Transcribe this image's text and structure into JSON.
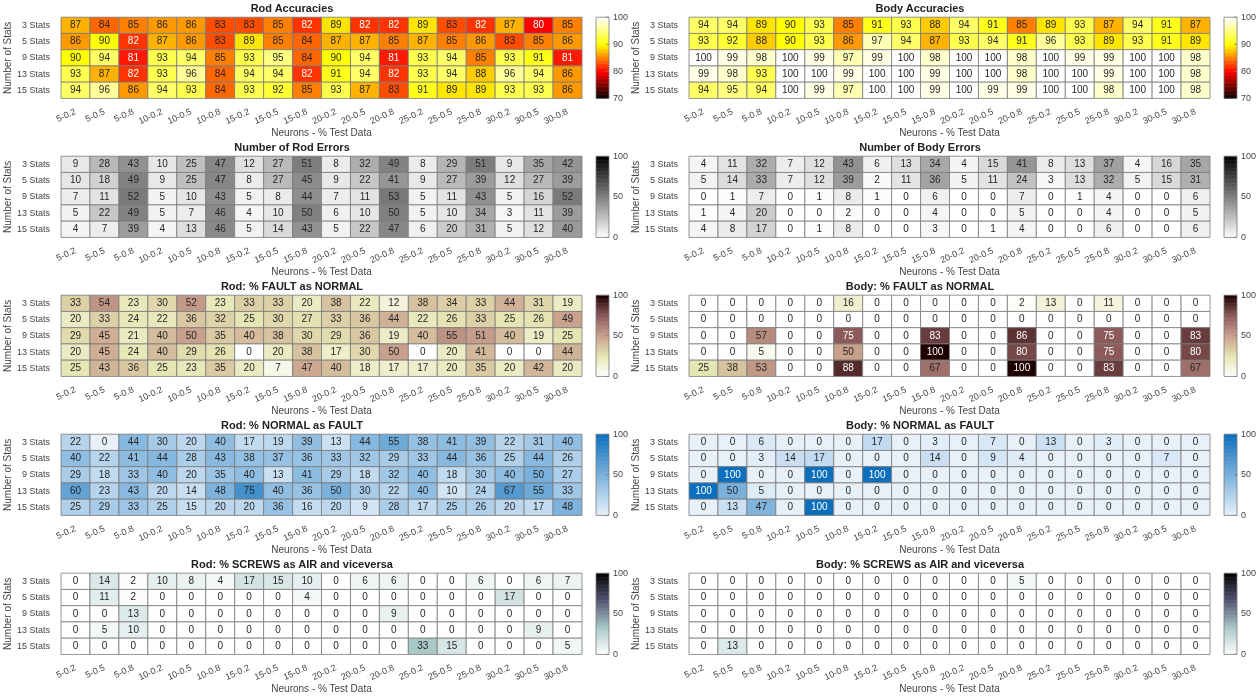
{
  "chart_data": [
    {
      "type": "heatmap",
      "title": "Rod Accuracies",
      "xlabel": "Neurons - % Test Data",
      "ylabel": "Number of Stats",
      "categories": [
        "5-0.2",
        "5-0.5",
        "5-0.8",
        "10-0.2",
        "10-0.5",
        "10-0.8",
        "15-0.2",
        "15-0.5",
        "15-0.8",
        "20-0.2",
        "20-0.5",
        "20-0.8",
        "25-0.2",
        "25-0.5",
        "25-0.8",
        "30-0.2",
        "30-0.5",
        "30-0.8"
      ],
      "y_categories": [
        "3 Stats",
        "5 Stats",
        "9 Stats",
        "13 Stats",
        "15 Stats"
      ],
      "data_labels": true,
      "clim": [
        70,
        100
      ],
      "cticks": [
        70,
        80,
        90,
        100
      ],
      "colors": [
        "#000000",
        "#ff0000",
        "#ffff00",
        "#ffffff"
      ],
      "cells": [
        [
          87,
          84,
          85,
          86,
          86,
          83,
          83,
          85,
          82,
          89,
          82,
          82,
          89,
          83,
          82,
          87,
          80,
          85
        ],
        [
          86,
          90,
          82,
          87,
          86,
          83,
          89,
          85,
          84,
          87,
          87,
          85,
          87,
          85,
          86,
          83,
          85,
          86
        ],
        [
          90,
          94,
          81,
          93,
          94,
          85,
          93,
          95,
          84,
          90,
          94,
          81,
          93,
          94,
          85,
          93,
          91,
          81
        ],
        [
          93,
          87,
          82,
          93,
          96,
          84,
          94,
          94,
          82,
          91,
          94,
          82,
          93,
          94,
          88,
          96,
          94,
          86
        ],
        [
          94,
          96,
          86,
          94,
          93,
          84,
          93,
          92,
          85,
          93,
          87,
          83,
          91,
          89,
          89,
          93,
          93,
          86
        ]
      ]
    },
    {
      "type": "heatmap",
      "title": "Body Accuracies",
      "xlabel": "Neurons - % Test Data",
      "ylabel": "Number of Stats",
      "categories": [
        "5-0.2",
        "5-0.5",
        "5-0.8",
        "10-0.2",
        "10-0.5",
        "10-0.8",
        "15-0.2",
        "15-0.5",
        "15-0.8",
        "20-0.2",
        "20-0.5",
        "20-0.8",
        "25-0.2",
        "25-0.5",
        "25-0.8",
        "30-0.2",
        "30-0.5",
        "30-0.8"
      ],
      "y_categories": [
        "3 Stats",
        "5 Stats",
        "9 Stats",
        "13 Stats",
        "15 Stats"
      ],
      "data_labels": true,
      "clim": [
        70,
        100
      ],
      "cticks": [
        70,
        80,
        90,
        100
      ],
      "colors": [
        "#000000",
        "#ff0000",
        "#ffff00",
        "#ffffff"
      ],
      "cells": [
        [
          94,
          94,
          89,
          90,
          93,
          85,
          91,
          93,
          88,
          94,
          91,
          85,
          89,
          93,
          87,
          94,
          91,
          87
        ],
        [
          93,
          92,
          88,
          90,
          93,
          86,
          97,
          94,
          87,
          93,
          94,
          91,
          96,
          93,
          89,
          93,
          91,
          89
        ],
        [
          100,
          99,
          98,
          100,
          99,
          97,
          99,
          100,
          98,
          100,
          100,
          98,
          100,
          99,
          99,
          100,
          100,
          98
        ],
        [
          99,
          98,
          93,
          100,
          100,
          99,
          100,
          100,
          99,
          100,
          100,
          98,
          100,
          100,
          99,
          100,
          100,
          98
        ],
        [
          94,
          95,
          94,
          100,
          99,
          97,
          100,
          100,
          99,
          100,
          99,
          99,
          100,
          100,
          98,
          100,
          100,
          98
        ]
      ]
    },
    {
      "type": "heatmap",
      "title": "Number of Rod Errors",
      "xlabel": "Neurons - % Test Data",
      "ylabel": "Number of Stats",
      "categories": [
        "5-0.2",
        "5-0.5",
        "5-0.8",
        "10-0.2",
        "10-0.5",
        "10-0.8",
        "15-0.2",
        "15-0.5",
        "15-0.8",
        "20-0.2",
        "20-0.5",
        "20-0.8",
        "25-0.2",
        "25-0.5",
        "25-0.8",
        "30-0.2",
        "30-0.5",
        "30-0.8"
      ],
      "y_categories": [
        "3 Stats",
        "5 Stats",
        "9 Stats",
        "13 Stats",
        "15 Stats"
      ],
      "data_labels": true,
      "clim": [
        0,
        100
      ],
      "cticks": [
        0,
        50,
        100
      ],
      "colors": [
        "#ffffff",
        "#000000"
      ],
      "cells": [
        [
          9,
          28,
          43,
          10,
          25,
          47,
          12,
          27,
          51,
          8,
          32,
          49,
          8,
          29,
          51,
          9,
          35,
          42
        ],
        [
          10,
          18,
          49,
          9,
          25,
          47,
          8,
          27,
          45,
          9,
          22,
          41,
          9,
          27,
          39,
          12,
          27,
          39
        ],
        [
          7,
          11,
          52,
          5,
          10,
          43,
          5,
          8,
          44,
          7,
          11,
          53,
          5,
          11,
          43,
          5,
          16,
          52
        ],
        [
          5,
          22,
          49,
          5,
          7,
          46,
          4,
          10,
          50,
          6,
          10,
          50,
          5,
          10,
          34,
          3,
          11,
          39
        ],
        [
          4,
          7,
          39,
          4,
          13,
          46,
          5,
          14,
          43,
          5,
          22,
          47,
          6,
          20,
          31,
          5,
          12,
          40
        ]
      ]
    },
    {
      "type": "heatmap",
      "title": "Number of Body Errors",
      "xlabel": "Neurons - % Test Data",
      "ylabel": "Number of Stats",
      "categories": [
        "5-0.2",
        "5-0.5",
        "5-0.8",
        "10-0.2",
        "10-0.5",
        "10-0.8",
        "15-0.2",
        "15-0.5",
        "15-0.8",
        "20-0.2",
        "20-0.5",
        "20-0.8",
        "25-0.2",
        "25-0.5",
        "25-0.8",
        "30-0.2",
        "30-0.5",
        "30-0.8"
      ],
      "y_categories": [
        "3 Stats",
        "5 Stats",
        "9 Stats",
        "13 Stats",
        "15 Stats"
      ],
      "data_labels": true,
      "clim": [
        0,
        100
      ],
      "cticks": [
        0,
        50,
        100
      ],
      "colors": [
        "#ffffff",
        "#000000"
      ],
      "cells": [
        [
          4,
          11,
          32,
          7,
          12,
          43,
          6,
          13,
          34,
          4,
          15,
          41,
          8,
          13,
          37,
          4,
          16,
          35
        ],
        [
          5,
          14,
          33,
          7,
          12,
          39,
          2,
          11,
          36,
          5,
          11,
          24,
          3,
          13,
          32,
          5,
          15,
          31
        ],
        [
          0,
          1,
          7,
          0,
          1,
          8,
          1,
          0,
          6,
          0,
          0,
          7,
          0,
          1,
          4,
          0,
          0,
          6
        ],
        [
          1,
          4,
          20,
          0,
          0,
          2,
          0,
          0,
          4,
          0,
          0,
          5,
          0,
          0,
          4,
          0,
          0,
          5
        ],
        [
          4,
          8,
          17,
          0,
          1,
          8,
          0,
          0,
          3,
          0,
          1,
          4,
          0,
          0,
          6,
          0,
          0,
          6
        ]
      ]
    },
    {
      "type": "heatmap",
      "title": "Rod: % FAULT as NORMAL",
      "xlabel": "Neurons - % Test Data",
      "ylabel": "Number of Stats",
      "categories": [
        "5-0.2",
        "5-0.5",
        "5-0.8",
        "10-0.2",
        "10-0.5",
        "10-0.8",
        "15-0.2",
        "15-0.5",
        "15-0.8",
        "20-0.2",
        "20-0.5",
        "20-0.8",
        "25-0.2",
        "25-0.5",
        "25-0.8",
        "30-0.2",
        "30-0.5",
        "30-0.8"
      ],
      "y_categories": [
        "3 Stats",
        "5 Stats",
        "9 Stats",
        "13 Stats",
        "15 Stats"
      ],
      "data_labels": true,
      "clim": [
        0,
        100
      ],
      "cticks": [
        0,
        50,
        100
      ],
      "colors": [
        "#ffffff",
        "#e6e6b4",
        "#c8a08c",
        "#8c5a5a",
        "#1e0000"
      ],
      "cells": [
        [
          33,
          54,
          23,
          30,
          52,
          23,
          33,
          33,
          20,
          38,
          22,
          12,
          38,
          34,
          33,
          44,
          31,
          19
        ],
        [
          20,
          33,
          24,
          22,
          36,
          32,
          25,
          30,
          27,
          33,
          36,
          44,
          22,
          26,
          33,
          25,
          26,
          49
        ],
        [
          29,
          45,
          21,
          40,
          50,
          35,
          40,
          38,
          30,
          29,
          36,
          19,
          40,
          55,
          51,
          40,
          19,
          25
        ],
        [
          20,
          45,
          24,
          40,
          29,
          26,
          0,
          20,
          38,
          17,
          30,
          50,
          0,
          20,
          41,
          0,
          0,
          44
        ],
        [
          25,
          43,
          36,
          25,
          23,
          35,
          20,
          7,
          47,
          40,
          18,
          17,
          17,
          20,
          35,
          20,
          42,
          20
        ]
      ]
    },
    {
      "type": "heatmap",
      "title": "Body: % FAULT as NORMAL",
      "xlabel": "Neurons - % Test Data",
      "ylabel": "Number of Stats",
      "categories": [
        "5-0.2",
        "5-0.5",
        "5-0.8",
        "10-0.2",
        "10-0.5",
        "10-0.8",
        "15-0.2",
        "15-0.5",
        "15-0.8",
        "20-0.2",
        "20-0.5",
        "20-0.8",
        "25-0.2",
        "25-0.5",
        "25-0.8",
        "30-0.2",
        "30-0.5",
        "30-0.8"
      ],
      "y_categories": [
        "3 Stats",
        "5 Stats",
        "9 Stats",
        "13 Stats",
        "15 Stats"
      ],
      "data_labels": true,
      "clim": [
        0,
        100
      ],
      "cticks": [
        0,
        50,
        100
      ],
      "colors": [
        "#ffffff",
        "#e6e6b4",
        "#c8a08c",
        "#8c5a5a",
        "#1e0000"
      ],
      "cells": [
        [
          0,
          0,
          0,
          0,
          0,
          16,
          0,
          0,
          0,
          0,
          0,
          2,
          13,
          0,
          11,
          0,
          0,
          0
        ],
        [
          0,
          0,
          0,
          0,
          0,
          0,
          0,
          0,
          0,
          0,
          0,
          0,
          0,
          0,
          0,
          0,
          0,
          0
        ],
        [
          0,
          0,
          57,
          0,
          0,
          75,
          0,
          0,
          83,
          0,
          0,
          86,
          0,
          0,
          75,
          0,
          0,
          83
        ],
        [
          0,
          0,
          5,
          0,
          0,
          50,
          0,
          0,
          100,
          0,
          0,
          80,
          0,
          0,
          75,
          0,
          0,
          80
        ],
        [
          25,
          38,
          53,
          0,
          0,
          88,
          0,
          0,
          67,
          0,
          0,
          100,
          0,
          0,
          83,
          0,
          0,
          67
        ]
      ]
    },
    {
      "type": "heatmap",
      "title": "Rod: % NORMAL as FAULT",
      "xlabel": "Neurons - % Test Data",
      "ylabel": "Number of Stats",
      "categories": [
        "5-0.2",
        "5-0.5",
        "5-0.8",
        "10-0.2",
        "10-0.5",
        "10-0.8",
        "15-0.2",
        "15-0.5",
        "15-0.8",
        "20-0.2",
        "20-0.5",
        "20-0.8",
        "25-0.2",
        "25-0.5",
        "25-0.8",
        "30-0.2",
        "30-0.5",
        "30-0.8"
      ],
      "y_categories": [
        "3 Stats",
        "5 Stats",
        "9 Stats",
        "13 Stats",
        "15 Stats"
      ],
      "data_labels": true,
      "clim": [
        0,
        100
      ],
      "cticks": [
        0,
        50,
        100
      ],
      "colors": [
        "#e8f1fa",
        "#0b6fbd"
      ],
      "cells": [
        [
          22,
          0,
          44,
          30,
          20,
          40,
          17,
          19,
          39,
          13,
          44,
          55,
          38,
          41,
          39,
          22,
          31,
          40
        ],
        [
          40,
          22,
          41,
          44,
          28,
          43,
          38,
          37,
          36,
          33,
          32,
          29,
          33,
          44,
          36,
          25,
          44,
          26
        ],
        [
          29,
          18,
          33,
          40,
          20,
          35,
          40,
          13,
          41,
          29,
          18,
          32,
          40,
          18,
          30,
          40,
          50,
          27
        ],
        [
          60,
          23,
          43,
          20,
          14,
          48,
          75,
          40,
          36,
          50,
          30,
          22,
          40,
          10,
          24,
          67,
          55,
          33
        ],
        [
          25,
          29,
          33,
          25,
          15,
          20,
          20,
          36,
          16,
          20,
          9,
          28,
          17,
          25,
          26,
          20,
          17,
          48
        ]
      ]
    },
    {
      "type": "heatmap",
      "title": "Body: % NORMAL as FAULT",
      "xlabel": "Neurons - % Test Data",
      "ylabel": "Number of Stats",
      "categories": [
        "5-0.2",
        "5-0.5",
        "5-0.8",
        "10-0.2",
        "10-0.5",
        "10-0.8",
        "15-0.2",
        "15-0.5",
        "15-0.8",
        "20-0.2",
        "20-0.5",
        "20-0.8",
        "25-0.2",
        "25-0.5",
        "25-0.8",
        "30-0.2",
        "30-0.5",
        "30-0.8"
      ],
      "y_categories": [
        "3 Stats",
        "5 Stats",
        "9 Stats",
        "13 Stats",
        "15 Stats"
      ],
      "data_labels": true,
      "clim": [
        0,
        100
      ],
      "cticks": [
        0,
        50,
        100
      ],
      "colors": [
        "#e8f1fa",
        "#0b6fbd"
      ],
      "cells": [
        [
          0,
          0,
          6,
          0,
          0,
          0,
          17,
          0,
          3,
          0,
          7,
          0,
          13,
          0,
          3,
          0,
          0,
          0
        ],
        [
          0,
          0,
          3,
          14,
          17,
          0,
          0,
          0,
          14,
          0,
          9,
          4,
          0,
          0,
          0,
          0,
          7,
          0
        ],
        [
          0,
          100,
          0,
          0,
          100,
          0,
          100,
          0,
          0,
          0,
          0,
          0,
          0,
          0,
          0,
          0,
          0,
          0
        ],
        [
          100,
          50,
          5,
          0,
          0,
          0,
          0,
          0,
          0,
          0,
          0,
          0,
          0,
          0,
          0,
          0,
          0,
          0
        ],
        [
          0,
          13,
          47,
          0,
          100,
          0,
          0,
          0,
          0,
          0,
          0,
          0,
          0,
          0,
          0,
          0,
          0,
          0
        ]
      ]
    },
    {
      "type": "heatmap",
      "title": "Rod: % SCREWS as AIR and viceversa",
      "xlabel": "Neurons - % Test Data",
      "ylabel": "Number of Stats",
      "categories": [
        "5-0.2",
        "5-0.5",
        "5-0.8",
        "10-0.2",
        "10-0.5",
        "10-0.8",
        "15-0.2",
        "15-0.5",
        "15-0.8",
        "20-0.2",
        "20-0.5",
        "20-0.8",
        "25-0.2",
        "25-0.5",
        "25-0.8",
        "30-0.2",
        "30-0.5",
        "30-0.8"
      ],
      "y_categories": [
        "3 Stats",
        "5 Stats",
        "9 Stats",
        "13 Stats",
        "15 Stats"
      ],
      "data_labels": true,
      "clim": [
        0,
        100
      ],
      "cticks": [
        0,
        50,
        100
      ],
      "colors": [
        "#ffffff",
        "#a8c8c8",
        "#545474",
        "#000000"
      ],
      "cells": [
        [
          0,
          14,
          2,
          10,
          8,
          4,
          17,
          15,
          10,
          0,
          6,
          6,
          0,
          0,
          6,
          0,
          6,
          7
        ],
        [
          0,
          11,
          2,
          0,
          0,
          0,
          0,
          0,
          4,
          0,
          0,
          0,
          0,
          0,
          0,
          17,
          0,
          0
        ],
        [
          0,
          0,
          13,
          0,
          0,
          0,
          0,
          0,
          0,
          0,
          0,
          9,
          0,
          0,
          0,
          0,
          0,
          0
        ],
        [
          0,
          5,
          10,
          0,
          0,
          0,
          0,
          0,
          0,
          0,
          0,
          0,
          0,
          0,
          0,
          0,
          9,
          0
        ],
        [
          0,
          0,
          0,
          0,
          0,
          0,
          0,
          0,
          0,
          0,
          0,
          0,
          33,
          15,
          0,
          0,
          0,
          5
        ]
      ]
    },
    {
      "type": "heatmap",
      "title": "Body: % SCREWS as AIR and viceversa",
      "xlabel": "Neurons - % Test Data",
      "ylabel": "Number of Stats",
      "categories": [
        "5-0.2",
        "5-0.5",
        "5-0.8",
        "10-0.2",
        "10-0.5",
        "10-0.8",
        "15-0.2",
        "15-0.5",
        "15-0.8",
        "20-0.2",
        "20-0.5",
        "20-0.8",
        "25-0.2",
        "25-0.5",
        "25-0.8",
        "30-0.2",
        "30-0.5",
        "30-0.8"
      ],
      "y_categories": [
        "3 Stats",
        "5 Stats",
        "9 Stats",
        "13 Stats",
        "15 Stats"
      ],
      "data_labels": true,
      "clim": [
        0,
        100
      ],
      "cticks": [
        0,
        50,
        100
      ],
      "colors": [
        "#ffffff",
        "#a8c8c8",
        "#545474",
        "#000000"
      ],
      "cells": [
        [
          0,
          0,
          0,
          0,
          0,
          0,
          0,
          0,
          0,
          0,
          0,
          5,
          0,
          0,
          0,
          0,
          0,
          0
        ],
        [
          0,
          0,
          0,
          0,
          0,
          0,
          0,
          0,
          0,
          0,
          0,
          0,
          0,
          0,
          0,
          0,
          0,
          0
        ],
        [
          0,
          0,
          0,
          0,
          0,
          0,
          0,
          0,
          0,
          0,
          0,
          0,
          0,
          0,
          0,
          0,
          0,
          0
        ],
        [
          0,
          0,
          0,
          0,
          0,
          0,
          0,
          0,
          0,
          0,
          0,
          0,
          0,
          0,
          0,
          0,
          0,
          0
        ],
        [
          0,
          13,
          0,
          0,
          0,
          0,
          0,
          0,
          0,
          0,
          0,
          0,
          0,
          0,
          0,
          0,
          0,
          0
        ]
      ]
    }
  ]
}
